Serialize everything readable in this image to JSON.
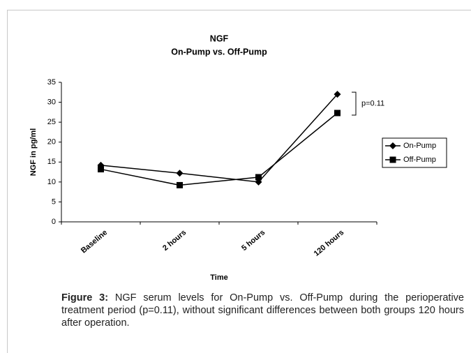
{
  "chart_data": {
    "type": "line",
    "title": "NGF",
    "subtitle": "On-Pump vs. Off-Pump",
    "x_label": "Time",
    "y_label": "NGF in pg/ml",
    "categories": [
      "Baseline",
      "2 hours",
      "5 hours",
      "120 hours"
    ],
    "series": [
      {
        "name": "On-Pump",
        "color": "#000000",
        "marker": "diamond",
        "values": [
          14.2,
          12.2,
          10,
          32
        ]
      },
      {
        "name": "Off-Pump",
        "color": "#000000",
        "marker": "square",
        "values": [
          13.2,
          9.2,
          11.2,
          27.3
        ]
      }
    ],
    "ylim": [
      0,
      35
    ],
    "yticks": [
      0,
      5,
      10,
      15,
      20,
      25,
      30,
      35
    ],
    "grid": false,
    "legend": "right",
    "annotation": "p=0.11"
  },
  "caption": {
    "label": "Figure 3:",
    "text": "NGF serum levels for On-Pump vs. Off-Pump during the perioperative treatment period (p=0.11), without significant differences between both groups 120 hours after operation."
  }
}
